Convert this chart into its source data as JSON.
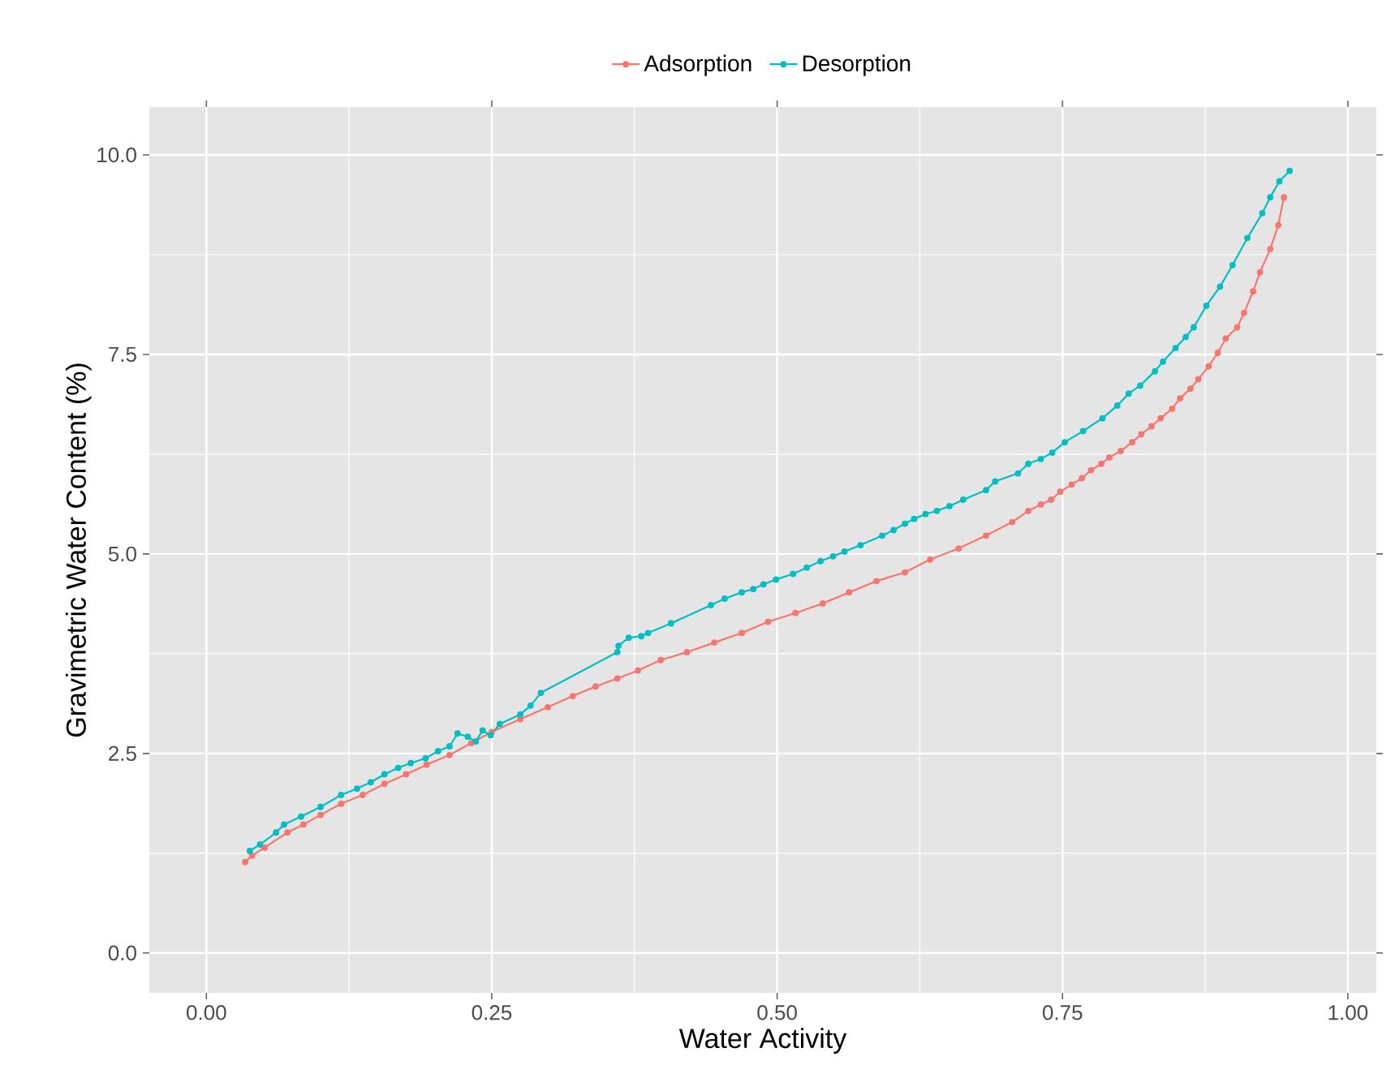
{
  "chart_data": {
    "type": "line",
    "xlabel": "Water Activity",
    "ylabel": "Gravimetric Water Content (%)",
    "xlim": [
      -0.05,
      1.025
    ],
    "ylim": [
      -0.5,
      10.6
    ],
    "xticks": [
      {
        "value": 0,
        "label": "0.00"
      },
      {
        "value": 0.25,
        "label": "0.25"
      },
      {
        "value": 0.5,
        "label": "0.50"
      },
      {
        "value": 0.75,
        "label": "0.75"
      },
      {
        "value": 1,
        "label": "1.00"
      }
    ],
    "yticks": [
      {
        "value": 0,
        "label": "0.0"
      },
      {
        "value": 2.5,
        "label": "2.5"
      },
      {
        "value": 5,
        "label": "5.0"
      },
      {
        "value": 7.5,
        "label": "7.5"
      },
      {
        "value": 10,
        "label": "10.0"
      }
    ],
    "grid": true,
    "legend": "top",
    "marker": "circle",
    "line_style": "solid",
    "series": [
      {
        "name": "Adsorption",
        "color": "#f8766d",
        "x": [
          0.034,
          0.04,
          0.051,
          0.071,
          0.085,
          0.1,
          0.118,
          0.137,
          0.156,
          0.175,
          0.193,
          0.213,
          0.232,
          0.25,
          0.275,
          0.299,
          0.321,
          0.341,
          0.36,
          0.378,
          0.398,
          0.421,
          0.445,
          0.469,
          0.492,
          0.516,
          0.54,
          0.563,
          0.587,
          0.612,
          0.634,
          0.659,
          0.683,
          0.706,
          0.72,
          0.731,
          0.74,
          0.748,
          0.758,
          0.767,
          0.775,
          0.784,
          0.791,
          0.801,
          0.811,
          0.819,
          0.828,
          0.836,
          0.846,
          0.853,
          0.862,
          0.869,
          0.878,
          0.886,
          0.893,
          0.903,
          0.909,
          0.917,
          0.923,
          0.932,
          0.939,
          0.944
        ],
        "values": [
          1.14,
          1.22,
          1.32,
          1.51,
          1.61,
          1.73,
          1.87,
          1.98,
          2.12,
          2.24,
          2.36,
          2.48,
          2.63,
          2.77,
          2.93,
          3.08,
          3.22,
          3.34,
          3.44,
          3.54,
          3.67,
          3.77,
          3.89,
          4.01,
          4.15,
          4.26,
          4.38,
          4.52,
          4.66,
          4.77,
          4.93,
          5.07,
          5.23,
          5.4,
          5.54,
          5.62,
          5.68,
          5.78,
          5.87,
          5.95,
          6.05,
          6.13,
          6.21,
          6.29,
          6.4,
          6.5,
          6.6,
          6.7,
          6.82,
          6.95,
          7.07,
          7.19,
          7.35,
          7.52,
          7.7,
          7.84,
          8.02,
          8.29,
          8.53,
          8.82,
          9.12,
          9.47
        ]
      },
      {
        "name": "Desorption",
        "color": "#00bfc4",
        "x": [
          0.038,
          0.047,
          0.061,
          0.068,
          0.083,
          0.1,
          0.118,
          0.132,
          0.144,
          0.156,
          0.168,
          0.179,
          0.192,
          0.203,
          0.213,
          0.22,
          0.229,
          0.236,
          0.242,
          0.249,
          0.257,
          0.275,
          0.284,
          0.293,
          0.36,
          0.361,
          0.37,
          0.381,
          0.387,
          0.407,
          0.442,
          0.454,
          0.469,
          0.479,
          0.488,
          0.499,
          0.514,
          0.526,
          0.538,
          0.549,
          0.559,
          0.573,
          0.592,
          0.602,
          0.612,
          0.62,
          0.63,
          0.64,
          0.651,
          0.663,
          0.683,
          0.691,
          0.711,
          0.72,
          0.731,
          0.741,
          0.752,
          0.768,
          0.785,
          0.798,
          0.808,
          0.818,
          0.831,
          0.838,
          0.849,
          0.858,
          0.865,
          0.876,
          0.888,
          0.899,
          0.912,
          0.925,
          0.932,
          0.94,
          0.949
        ],
        "values": [
          1.28,
          1.36,
          1.51,
          1.61,
          1.71,
          1.83,
          1.98,
          2.06,
          2.14,
          2.24,
          2.32,
          2.38,
          2.44,
          2.53,
          2.59,
          2.75,
          2.71,
          2.65,
          2.79,
          2.73,
          2.87,
          2.99,
          3.1,
          3.26,
          3.77,
          3.85,
          3.95,
          3.97,
          4.01,
          4.13,
          4.36,
          4.44,
          4.52,
          4.56,
          4.62,
          4.68,
          4.75,
          4.83,
          4.91,
          4.97,
          5.03,
          5.11,
          5.23,
          5.3,
          5.38,
          5.44,
          5.5,
          5.54,
          5.6,
          5.68,
          5.8,
          5.91,
          6.01,
          6.13,
          6.19,
          6.27,
          6.4,
          6.54,
          6.7,
          6.86,
          7.01,
          7.11,
          7.29,
          7.41,
          7.58,
          7.72,
          7.84,
          8.11,
          8.35,
          8.62,
          8.96,
          9.27,
          9.47,
          9.67,
          9.8
        ]
      }
    ]
  }
}
